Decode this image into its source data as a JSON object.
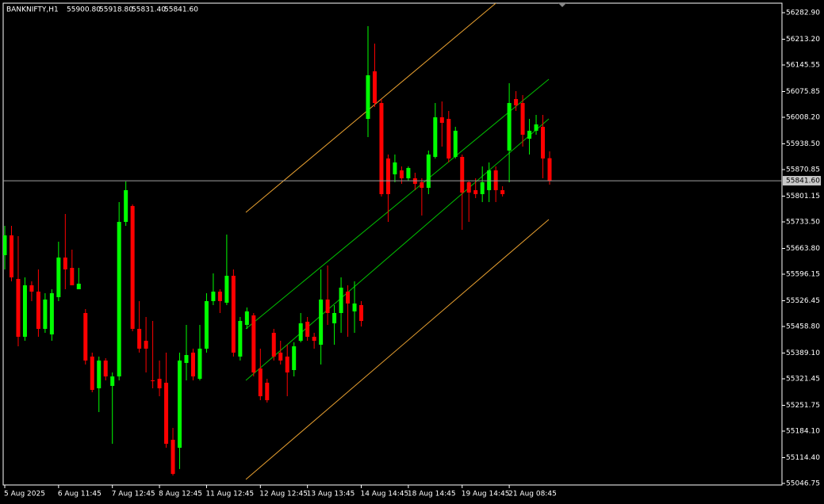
{
  "chart_data": {
    "type": "candlestick",
    "title": "BANKNIFTY,H1",
    "last_bar_labels": [
      "55900.80",
      "55918.80",
      "55831.40",
      "55841.60"
    ],
    "up_color": "#00ff00",
    "down_color": "#ff0000",
    "x": [
      "5 Aug 2025",
      null,
      null,
      null,
      null,
      null,
      null,
      null,
      "6 Aug 11:45",
      null,
      null,
      null,
      null,
      null,
      null,
      null,
      "7 Aug 12:45",
      null,
      null,
      null,
      null,
      null,
      null,
      "8 Aug 12:45",
      null,
      null,
      null,
      null,
      null,
      null,
      "11 Aug 12:45",
      null,
      null,
      null,
      null,
      null,
      null,
      null,
      "12 Aug 12:45",
      null,
      null,
      null,
      null,
      null,
      null,
      "13 Aug 13:45",
      null,
      null,
      null,
      null,
      null,
      null,
      null,
      "14 Aug 14:45",
      null,
      null,
      null,
      null,
      null,
      null,
      "18 Aug 14:45",
      null,
      null,
      null,
      null,
      null,
      null,
      null,
      "19 Aug 14:45",
      null,
      null,
      null,
      null,
      null,
      null,
      "21 Aug 08:45",
      null,
      null,
      null,
      null,
      null,
      null
    ],
    "open": [
      55646.1,
      55698.1,
      55583.7,
      55431.8,
      55567.0,
      55550.4,
      55452.6,
      55438.0,
      55535.8,
      55639.9,
      55612.8,
      55556.6,
      55494.2,
      55379.8,
      55296.5,
      55369.4,
      55302.8,
      55327.7,
      55733.5,
      55775.2,
      55452.6,
      55421.3,
      55317.3,
      55321.5,
      55311.1,
      55161.3,
      55140.4,
      55363.1,
      55390.2,
      55321.5,
      55400.6,
      55525.4,
      55550.4,
      55521.2,
      55592.0,
      55379.8,
      55463.0,
      55488.0,
      55348.6,
      55311.1,
      55442.2,
      55390.2,
      55379.8,
      55344.4,
      55421.3,
      55471.3,
      55431.8,
      55410.9,
      55529.6,
      55467.2,
      55494.2,
      55550.4,
      55498.4,
      55515.0,
      56004.0,
      56128.9,
      56045.7,
      55900.0,
      55858.4,
      55868.8,
      55848.0,
      55848.0,
      55837.6,
      55823.0,
      55904.2,
      56008.2,
      56004.0,
      55904.2,
      55904.2,
      55837.6,
      55816.8,
      55806.4,
      55816.8,
      55868.8,
      55816.8,
      55920.8,
      56056.1,
      56045.7,
      55952.0,
      55972.8,
      55983.2,
      55900.8
    ],
    "high": [
      55723.1,
      55723.1,
      55696.1,
      55587.8,
      55577.4,
      55608.7,
      55546.2,
      55556.6,
      55681.5,
      55754.3,
      55660.7,
      55612.8,
      55504.6,
      55390.2,
      55379.8,
      55375.6,
      55338.1,
      55785.6,
      55839.6,
      55779.3,
      55525.4,
      55483.8,
      55473.4,
      55369.4,
      55390.2,
      55192.5,
      55390.2,
      55463.0,
      55400.6,
      55463.0,
      55546.2,
      55598.3,
      55556.6,
      55700.2,
      55608.7,
      55483.8,
      55508.8,
      55494.2,
      55400.6,
      55321.5,
      55452.6,
      55421.3,
      55410.9,
      55417.2,
      55494.2,
      55483.8,
      55442.2,
      55608.7,
      55619.1,
      55515.0,
      55587.8,
      55567.0,
      55577.4,
      55525.4,
      56247.5,
      56201.7,
      56056.1,
      55910.4,
      55910.4,
      55879.2,
      55879.2,
      55862.6,
      55848.0,
      55920.8,
      56045.7,
      56049.8,
      56024.9,
      55983.2,
      55910.4,
      55841.7,
      55848.0,
      55879.2,
      55889.6,
      55879.2,
      55827.2,
      56097.7,
      56076.9,
      56066.5,
      56004.0,
      56014.5,
      56014.5,
      55918.8
    ],
    "low": [
      55608.7,
      55577.4,
      55406.8,
      55421.3,
      55525.4,
      55431.8,
      55442.2,
      55421.3,
      55525.4,
      55556.6,
      55567.0,
      55556.6,
      55359.0,
      55286.1,
      55234.1,
      55317.3,
      55150.8,
      55317.3,
      55723.1,
      55446.3,
      55390.2,
      55338.1,
      55296.5,
      55275.7,
      55140.4,
      55067.6,
      55084.4,
      55317.3,
      55317.3,
      55317.3,
      55390.2,
      55515.0,
      55494.2,
      55515.0,
      55379.8,
      55369.4,
      55452.6,
      55327.7,
      55265.3,
      55259.1,
      55369.4,
      55359.0,
      55275.7,
      55327.7,
      55417.2,
      55421.3,
      55400.6,
      55359.0,
      55463.0,
      55410.9,
      55442.2,
      55431.8,
      55442.2,
      55458.8,
      55956.2,
      56035.3,
      55800.1,
      55733.5,
      55837.6,
      55833.4,
      55841.7,
      55816.8,
      55750.2,
      55806.4,
      55900.0,
      55931.2,
      55889.6,
      55900.0,
      55712.7,
      55733.5,
      55796.0,
      55785.6,
      55785.6,
      55785.6,
      55800.1,
      55837.6,
      56024.9,
      55931.2,
      55910.4,
      55962.4,
      55848.0,
      55831.4
    ],
    "close": [
      55698.1,
      55587.8,
      55431.8,
      55567.0,
      55550.4,
      55452.6,
      55529.6,
      55546.2,
      55639.9,
      55608.7,
      55567.0,
      55571.2,
      55369.4,
      55292.3,
      55369.4,
      55327.7,
      55327.7,
      55733.5,
      55816.8,
      55452.6,
      55400.6,
      55400.6,
      55315.2,
      55296.5,
      55150.8,
      55071.8,
      55369.4,
      55383.9,
      55327.7,
      55400.6,
      55525.4,
      55550.4,
      55525.4,
      55592.0,
      55390.2,
      55473.4,
      55498.4,
      55338.1,
      55275.7,
      55265.3,
      55379.8,
      55369.4,
      55338.1,
      55406.8,
      55467.2,
      55431.8,
      55421.3,
      55529.6,
      55494.2,
      55494.2,
      55560.8,
      55519.2,
      55519.2,
      55473.4,
      56118.5,
      56045.7,
      55806.4,
      55806.4,
      55889.6,
      55848.0,
      55875.0,
      55833.4,
      55823.0,
      55910.4,
      56008.2,
      55993.6,
      55900.0,
      55972.8,
      55810.5,
      55810.5,
      55806.4,
      55837.6,
      55868.8,
      55816.8,
      55806.4,
      56045.7,
      56039.4,
      55962.4,
      55972.8,
      55989.5,
      55900.0,
      55841.6
    ],
    "price_line": {
      "value": 55841.6,
      "label": "55841.60"
    },
    "ylim": [
      55042.6,
      56307.9
    ],
    "yticks": [
      {
        "value": 56282.9,
        "label": "56282.90"
      },
      {
        "value": 56213.2,
        "label": "56213.20"
      },
      {
        "value": 56145.55,
        "label": "56145.55"
      },
      {
        "value": 56075.85,
        "label": "56075.85"
      },
      {
        "value": 56008.2,
        "label": "56008.20"
      },
      {
        "value": 55938.5,
        "label": "55938.50"
      },
      {
        "value": 55870.85,
        "label": "55870.85"
      },
      {
        "value": 55801.15,
        "label": "55801.15"
      },
      {
        "value": 55733.5,
        "label": "55733.50"
      },
      {
        "value": 55663.8,
        "label": "55663.80"
      },
      {
        "value": 55596.15,
        "label": "55596.15"
      },
      {
        "value": 55526.45,
        "label": "55526.45"
      },
      {
        "value": 55458.8,
        "label": "55458.80"
      },
      {
        "value": 55389.1,
        "label": "55389.10"
      },
      {
        "value": 55321.45,
        "label": "55321.45"
      },
      {
        "value": 55251.75,
        "label": "55251.75"
      },
      {
        "value": 55184.1,
        "label": "55184.10"
      },
      {
        "value": 55114.4,
        "label": "55114.40"
      },
      {
        "value": 55046.75,
        "label": "55046.75"
      }
    ]
  }
}
